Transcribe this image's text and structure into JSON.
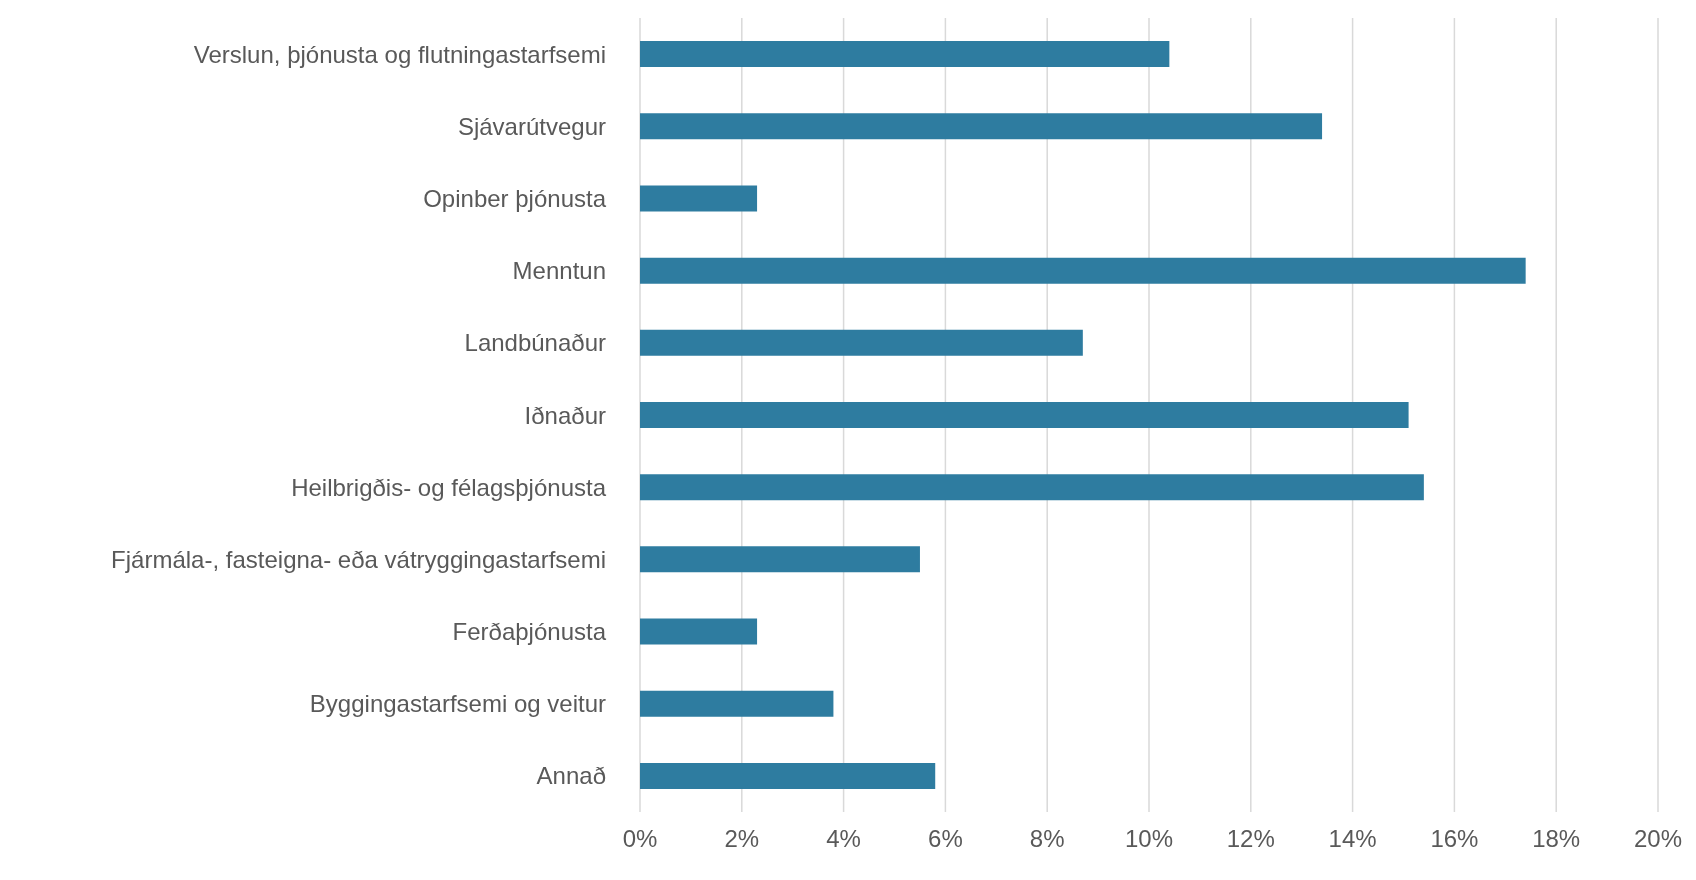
{
  "chart_data": {
    "type": "bar",
    "orientation": "horizontal",
    "categories": [
      "Verslun, þjónusta og flutningastarfsemi",
      "Sjávarútvegur",
      "Opinber þjónusta",
      "Menntun",
      "Landbúnaður",
      "Iðnaður",
      "Heilbrigðis- og félagsþjónusta",
      "Fjármála-, fasteigna- eða vátryggingastarfsemi",
      "Ferðaþjónusta",
      "Byggingastarfsemi og veitur",
      "Annað"
    ],
    "values": [
      10.4,
      13.4,
      2.3,
      17.4,
      8.7,
      15.1,
      15.4,
      5.5,
      2.3,
      3.8,
      5.8
    ],
    "color": "#2e7ca0",
    "xlim": [
      0,
      20
    ],
    "xticks": [
      {
        "value": 0,
        "label": "0%"
      },
      {
        "value": 2,
        "label": "2%"
      },
      {
        "value": 4,
        "label": "4%"
      },
      {
        "value": 6,
        "label": "6%"
      },
      {
        "value": 8,
        "label": "8%"
      },
      {
        "value": 10,
        "label": "10%"
      },
      {
        "value": 12,
        "label": "12%"
      },
      {
        "value": 14,
        "label": "14%"
      },
      {
        "value": 16,
        "label": "16%"
      },
      {
        "value": 18,
        "label": "18%"
      },
      {
        "value": 20,
        "label": "20%"
      }
    ],
    "grid": "x"
  }
}
